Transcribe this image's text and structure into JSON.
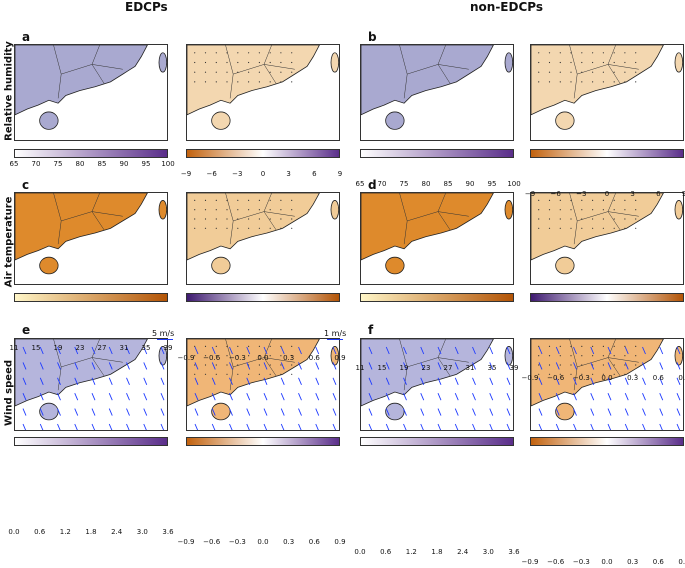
{
  "columns": {
    "left": "EDCPs",
    "right": "non-EDCPs"
  },
  "rows": [
    "Relative humidity",
    "Air temperature",
    "Wind speed"
  ],
  "panel_letters": [
    "a",
    "b",
    "c",
    "d",
    "e",
    "f"
  ],
  "colorbars": {
    "rh_abs": {
      "ticks": [
        "65",
        "70",
        "75",
        "80",
        "85",
        "90",
        "95",
        "100"
      ],
      "colors": [
        "#ffffff",
        "#5a2e8a"
      ]
    },
    "rh_diff": {
      "ticks": [
        "−9",
        "−6",
        "−3",
        "0",
        "3",
        "6",
        "9"
      ],
      "colors": [
        "#c2620e",
        "#ffffff",
        "#5a2e8a"
      ]
    },
    "temp_abs": {
      "ticks": [
        "11",
        "15",
        "19",
        "23",
        "27",
        "31",
        "35",
        "39"
      ],
      "colors": [
        "#fff6c8",
        "#b35406"
      ]
    },
    "temp_diff": {
      "ticks": [
        "−0.9",
        "−0.6",
        "−0.3",
        "0.0",
        "0.3",
        "0.6",
        "0.9"
      ],
      "colors": [
        "#3e1a70",
        "#ffffff",
        "#b35406"
      ]
    },
    "wind_abs": {
      "ticks": [
        "0.0",
        "0.6",
        "1.2",
        "1.8",
        "2.4",
        "3.0",
        "3.6"
      ],
      "colors": [
        "#ffffff",
        "#5a2e8a"
      ]
    },
    "wind_diff": {
      "ticks": [
        "−0.9",
        "−0.6",
        "−0.3",
        "0.0",
        "0.3",
        "0.6",
        "0.9"
      ],
      "colors": [
        "#c2620e",
        "#ffffff",
        "#5a2e8a"
      ]
    }
  },
  "vector_refs": {
    "left": "5 m/s",
    "right": "1 m/s"
  },
  "colors": {
    "rh_land": "#a9a9d0",
    "rh_diff_land": "#f3d7b0",
    "temp_land": "#de8a2c",
    "temp_diff_land": "#f1cc98",
    "wind_land": "#b5b5dc",
    "wind_diff_land": "#f0b677",
    "arrow": "#1f3bff"
  }
}
